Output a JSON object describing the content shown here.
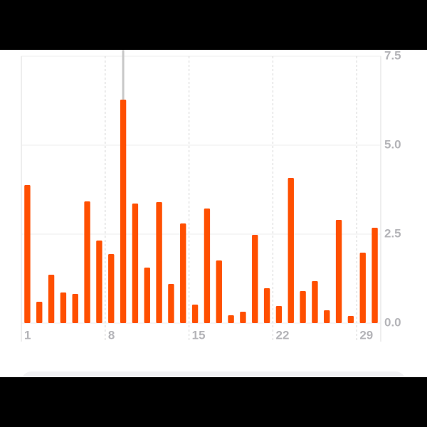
{
  "chart_data": {
    "type": "bar",
    "categories": [
      "1",
      null,
      null,
      null,
      null,
      null,
      null,
      "8",
      null,
      null,
      null,
      null,
      null,
      null,
      "15",
      null,
      null,
      null,
      null,
      null,
      null,
      "22",
      null,
      null,
      null,
      null,
      null,
      null,
      "29",
      null
    ],
    "values": [
      3.88,
      0.6,
      1.36,
      0.86,
      0.82,
      3.42,
      2.32,
      1.94,
      6.28,
      3.36,
      1.56,
      3.4,
      1.1,
      2.8,
      0.52,
      3.22,
      1.76,
      0.22,
      0.32,
      2.48,
      0.98,
      0.48,
      4.08,
      0.9,
      1.18,
      0.36,
      2.9,
      0.2,
      1.98,
      2.68
    ],
    "color": "#ff4f00",
    "ylim": [
      0,
      7.5
    ],
    "yticks": [
      {
        "value": 0,
        "label": "0.0"
      },
      2.5,
      {
        "value": 5,
        "label": "5.0"
      },
      7.5
    ],
    "grid": true
  }
}
